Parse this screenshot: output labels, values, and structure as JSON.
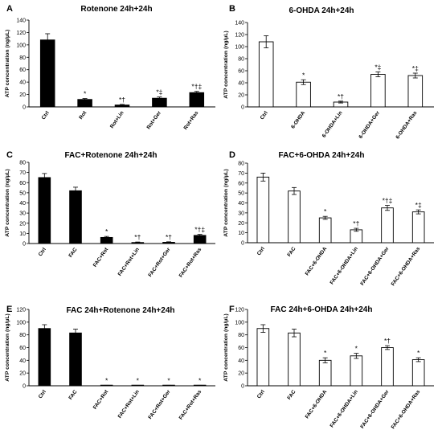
{
  "figure": {
    "ylabel": "ATP concentration (ng/µL)"
  },
  "chart_data": [
    {
      "type": "bar",
      "panel_letter": "A",
      "title": "Rotenone 24h+24h",
      "ylabel": "ATP concentration (ng/µL)",
      "ylim": [
        0,
        140
      ],
      "yticks": [
        0,
        20,
        40,
        60,
        80,
        100,
        120,
        140
      ],
      "bar_fill": "#000000",
      "categories": [
        "Ctrl",
        "Rot",
        "Rot+Lin",
        "Rot+Ger",
        "Rot+Ras"
      ],
      "values": [
        108,
        12,
        3,
        14,
        23
      ],
      "errors": [
        10,
        1.5,
        1,
        2,
        2
      ],
      "annotations": [
        "",
        "*",
        "*†",
        "*‡",
        "*†‡"
      ]
    },
    {
      "type": "bar",
      "panel_letter": "B",
      "title": "6-OHDA 24h+24h",
      "ylabel": "ATP concentration (ng/µL)",
      "ylim": [
        0,
        140
      ],
      "yticks": [
        0,
        20,
        40,
        60,
        80,
        100,
        120,
        140
      ],
      "bar_fill": "#ffffff",
      "categories": [
        "Ctrl",
        "6-OHDA",
        "6-OHDA+Lin",
        "6-OHDA+Ger",
        "6-OHDA+Ras"
      ],
      "values": [
        108,
        41,
        8,
        54,
        52
      ],
      "errors": [
        10,
        4,
        1.5,
        4,
        4
      ],
      "annotations": [
        "",
        "*",
        "*†",
        "*‡",
        "*‡"
      ]
    },
    {
      "type": "bar",
      "panel_letter": "C",
      "title": "FAC+Rotenone 24h+24h",
      "ylabel": "ATP concentration (ng/µL)",
      "ylim": [
        0,
        80
      ],
      "yticks": [
        0,
        10,
        20,
        30,
        40,
        50,
        60,
        70,
        80
      ],
      "bar_fill": "#000000",
      "categories": [
        "Ctrl",
        "FAC",
        "FAC+Rot",
        "FAC+Rot+Lin",
        "FAC+Rot+Ger",
        "FAC+Rot+Ras"
      ],
      "values": [
        65,
        52,
        6,
        1,
        1.2,
        8
      ],
      "errors": [
        4,
        3.5,
        1,
        0.5,
        0.5,
        1
      ],
      "annotations": [
        "",
        "",
        "*",
        "*†",
        "*†",
        "*†‡"
      ]
    },
    {
      "type": "bar",
      "panel_letter": "D",
      "title": "FAC+6-OHDA 24h+24h",
      "ylabel": "ATP concentration (ng/µL)",
      "ylim": [
        0,
        80
      ],
      "yticks": [
        0,
        10,
        20,
        30,
        40,
        50,
        60,
        70,
        80
      ],
      "bar_fill": "#ffffff",
      "categories": [
        "Ctrl",
        "FAC",
        "FAC+6-OHDA",
        "FAC+6-OHDA+Lin",
        "FAC+6-OHDA+Ger",
        "FAC+6-OHDA+Ras"
      ],
      "values": [
        66,
        52,
        25,
        13,
        35,
        31
      ],
      "errors": [
        4,
        3.5,
        1.5,
        1.5,
        2.5,
        2
      ],
      "annotations": [
        "",
        "",
        "*",
        "*†",
        "*†‡",
        "*‡"
      ]
    },
    {
      "type": "bar",
      "panel_letter": "E",
      "title": "FAC 24h+Rotenone 24h+24h",
      "ylabel": "ATP concentration (ng/µL)",
      "ylim": [
        0,
        120
      ],
      "yticks": [
        0,
        20,
        40,
        60,
        80,
        100,
        120
      ],
      "bar_fill": "#000000",
      "categories": [
        "Ctrl",
        "FAC",
        "FAC+Rot",
        "FAC+Rot+Lin",
        "FAC+Rot+Ger",
        "FAC+Rot+Ras"
      ],
      "values": [
        90,
        83,
        0.5,
        0.3,
        0.5,
        0.5
      ],
      "errors": [
        6,
        6,
        0.3,
        0.2,
        0.3,
        0.3
      ],
      "annotations": [
        "",
        "",
        "*",
        "*",
        "*",
        "*"
      ]
    },
    {
      "type": "bar",
      "panel_letter": "F",
      "title": "FAC 24h+6-OHDA 24h+24h",
      "ylabel": "ATP concentration (ng/µL)",
      "ylim": [
        0,
        120
      ],
      "yticks": [
        0,
        20,
        40,
        60,
        80,
        100,
        120
      ],
      "bar_fill": "#ffffff",
      "categories": [
        "Ctrl",
        "FAC",
        "FAC+6-OHDA",
        "FAC+6-OHDA+Lin",
        "FAC+6-OHDA+Ger",
        "FAC+6-OHDA+Ras"
      ],
      "values": [
        90,
        83,
        40,
        47,
        60,
        41
      ],
      "errors": [
        6,
        6,
        4,
        4,
        3,
        3
      ],
      "annotations": [
        "",
        "",
        "*",
        "*",
        "*†",
        "*"
      ]
    }
  ]
}
